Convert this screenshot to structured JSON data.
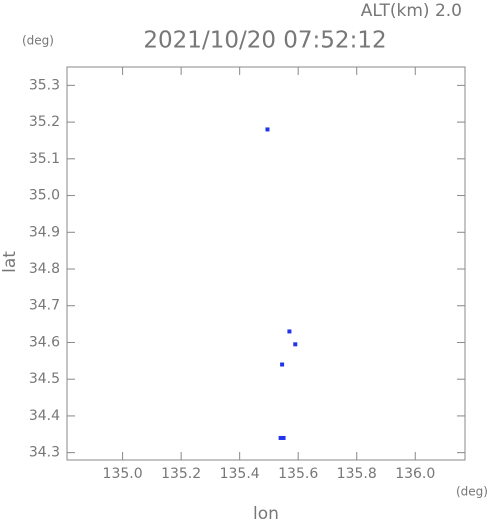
{
  "chart_data": {
    "type": "scatter",
    "title": "2021/10/20 07:52:12",
    "subtitle": "ALT(km) 2.0",
    "x_label": "lon",
    "y_label": "lat",
    "x_unit": "(deg)",
    "y_unit": "(deg)",
    "xlim": [
      134.81,
      136.17
    ],
    "ylim": [
      34.28,
      35.35
    ],
    "xticks": [
      {
        "value": 135.0,
        "label": "135.0"
      },
      135.2,
      135.4,
      135.6,
      135.8,
      {
        "value": 136.0,
        "label": "136.0"
      }
    ],
    "yticks": [
      34.3,
      34.4,
      34.5,
      34.6,
      34.7,
      34.8,
      34.9,
      {
        "value": 35.0,
        "label": "35.0"
      },
      35.1,
      35.2,
      35.3
    ],
    "series": [
      {
        "color": "#2233ee",
        "x": [
          135.495,
          135.57,
          135.59,
          135.545,
          135.54,
          135.55
        ],
        "values": [
          35.18,
          34.63,
          34.595,
          34.54,
          34.34,
          34.34
        ]
      }
    ]
  }
}
